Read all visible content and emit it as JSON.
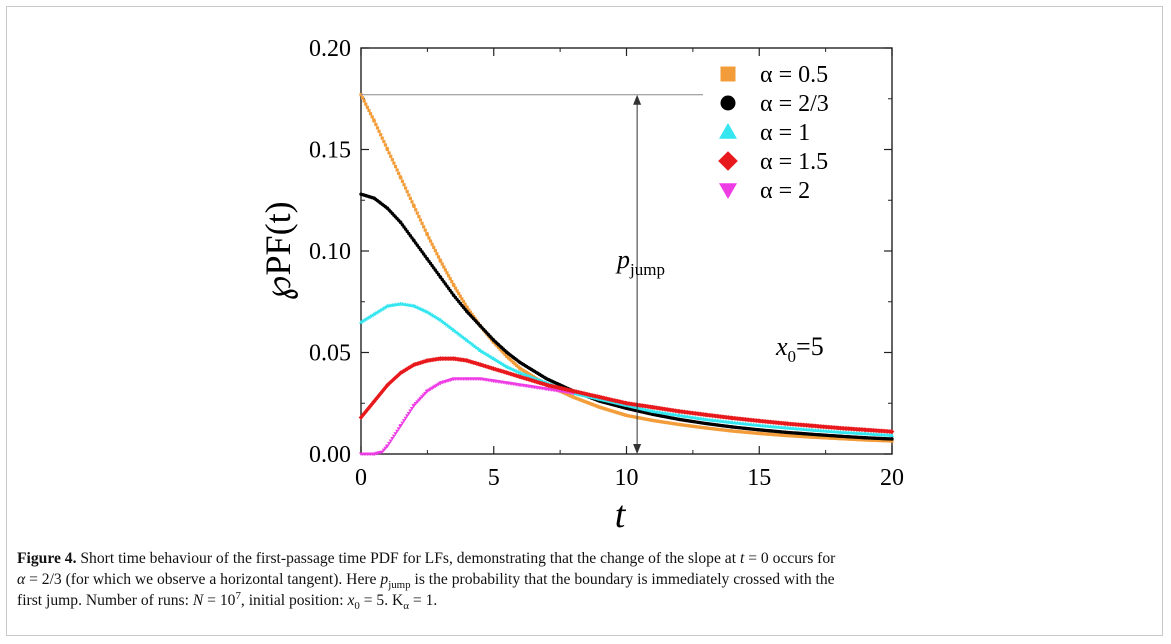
{
  "chart_data": {
    "type": "scatter",
    "title": "",
    "xlabel": "t",
    "ylabel": "℘PF(t)",
    "xlim": [
      0,
      20
    ],
    "ylim": [
      0,
      0.2
    ],
    "x_ticks": [
      "0",
      "5",
      "10",
      "15",
      "20"
    ],
    "y_ticks": [
      "0.00",
      "0.05",
      "0.10",
      "0.15",
      "0.20"
    ],
    "legend_placement": "right",
    "annotations": {
      "p_jump_label": "p",
      "p_jump_sub": "jump",
      "p_jump_from": 0.177,
      "p_jump_to": 0.0,
      "p_jump_x": 10.4,
      "x0_label": "x",
      "x0_sub": "0",
      "x0_value": "=5"
    },
    "series": [
      {
        "name": "α = 0.5",
        "marker": "square",
        "color": "#f39c3a",
        "points": [
          [
            0,
            0.177
          ],
          [
            0.5,
            0.164
          ],
          [
            1,
            0.15
          ],
          [
            1.5,
            0.136
          ],
          [
            2,
            0.122
          ],
          [
            2.5,
            0.108
          ],
          [
            3,
            0.095
          ],
          [
            3.5,
            0.083
          ],
          [
            4,
            0.072
          ],
          [
            4.5,
            0.063
          ],
          [
            5,
            0.055
          ],
          [
            5.5,
            0.048
          ],
          [
            6,
            0.042
          ],
          [
            7,
            0.034
          ],
          [
            8,
            0.028
          ],
          [
            9,
            0.023
          ],
          [
            10,
            0.019
          ],
          [
            11,
            0.0165
          ],
          [
            12,
            0.0145
          ],
          [
            13,
            0.0128
          ],
          [
            14,
            0.0113
          ],
          [
            15,
            0.0101
          ],
          [
            16,
            0.0091
          ],
          [
            17,
            0.0083
          ],
          [
            18,
            0.0076
          ],
          [
            19,
            0.0069
          ],
          [
            20,
            0.0064
          ]
        ]
      },
      {
        "name": "α = 2/3",
        "marker": "circle",
        "color": "#000000",
        "points": [
          [
            0,
            0.128
          ],
          [
            0.5,
            0.126
          ],
          [
            1,
            0.121
          ],
          [
            1.5,
            0.114
          ],
          [
            2,
            0.105
          ],
          [
            2.5,
            0.096
          ],
          [
            3,
            0.087
          ],
          [
            3.5,
            0.078
          ],
          [
            4,
            0.07
          ],
          [
            4.5,
            0.063
          ],
          [
            5,
            0.056
          ],
          [
            5.5,
            0.05
          ],
          [
            6,
            0.045
          ],
          [
            7,
            0.037
          ],
          [
            8,
            0.031
          ],
          [
            9,
            0.026
          ],
          [
            10,
            0.0225
          ],
          [
            11,
            0.0195
          ],
          [
            12,
            0.017
          ],
          [
            13,
            0.015
          ],
          [
            14,
            0.0133
          ],
          [
            15,
            0.0119
          ],
          [
            16,
            0.0107
          ],
          [
            17,
            0.0097
          ],
          [
            18,
            0.0088
          ],
          [
            19,
            0.008
          ],
          [
            20,
            0.0074
          ]
        ]
      },
      {
        "name": "α = 1",
        "marker": "triangle-up",
        "color": "#33e6f0",
        "points": [
          [
            0,
            0.065
          ],
          [
            0.5,
            0.069
          ],
          [
            1,
            0.073
          ],
          [
            1.5,
            0.074
          ],
          [
            2,
            0.073
          ],
          [
            2.5,
            0.07
          ],
          [
            3,
            0.066
          ],
          [
            3.5,
            0.061
          ],
          [
            4,
            0.056
          ],
          [
            4.5,
            0.051
          ],
          [
            5,
            0.047
          ],
          [
            5.5,
            0.043
          ],
          [
            6,
            0.04
          ],
          [
            7,
            0.035
          ],
          [
            8,
            0.03
          ],
          [
            9,
            0.027
          ],
          [
            10,
            0.024
          ],
          [
            11,
            0.021
          ],
          [
            12,
            0.019
          ],
          [
            13,
            0.017
          ],
          [
            14,
            0.0155
          ],
          [
            15,
            0.0141
          ],
          [
            16,
            0.0129
          ],
          [
            17,
            0.0118
          ],
          [
            18,
            0.0108
          ],
          [
            19,
            0.01
          ],
          [
            20,
            0.0092
          ]
        ]
      },
      {
        "name": "α = 1.5",
        "marker": "diamond",
        "color": "#e8191c",
        "points": [
          [
            0,
            0.018
          ],
          [
            0.5,
            0.026
          ],
          [
            1,
            0.034
          ],
          [
            1.5,
            0.04
          ],
          [
            2,
            0.044
          ],
          [
            2.5,
            0.046
          ],
          [
            3,
            0.047
          ],
          [
            3.5,
            0.047
          ],
          [
            4,
            0.046
          ],
          [
            4.5,
            0.044
          ],
          [
            5,
            0.042
          ],
          [
            5.5,
            0.04
          ],
          [
            6,
            0.038
          ],
          [
            7,
            0.034
          ],
          [
            8,
            0.031
          ],
          [
            9,
            0.028
          ],
          [
            10,
            0.025
          ],
          [
            11,
            0.023
          ],
          [
            12,
            0.021
          ],
          [
            13,
            0.0193
          ],
          [
            14,
            0.0177
          ],
          [
            15,
            0.0163
          ],
          [
            16,
            0.015
          ],
          [
            17,
            0.0139
          ],
          [
            18,
            0.0128
          ],
          [
            19,
            0.0119
          ],
          [
            20,
            0.011
          ]
        ]
      },
      {
        "name": "α = 2",
        "marker": "triangle-down",
        "color": "#ef3de6",
        "points": [
          [
            0,
            0.0
          ],
          [
            0.5,
            0.0
          ],
          [
            0.8,
            0.001
          ],
          [
            1,
            0.004
          ],
          [
            1.5,
            0.014
          ],
          [
            2,
            0.024
          ],
          [
            2.5,
            0.031
          ],
          [
            3,
            0.035
          ],
          [
            3.5,
            0.037
          ],
          [
            4,
            0.037
          ],
          [
            4.5,
            0.037
          ],
          [
            5,
            0.036
          ],
          [
            5.5,
            0.035
          ],
          [
            6,
            0.034
          ],
          [
            7,
            0.032
          ],
          [
            8,
            0.03
          ]
        ]
      }
    ]
  },
  "caption": {
    "label": "Figure 4.",
    "t1": " Short time behaviour of the first-passage time PDF for LFs, demonstrating that the change of the slope at ",
    "m1": "t",
    "t2": " = 0 occurs for",
    "m2": "α",
    "t3": " = 2/3 (for which we observe a horizontal tangent). Here ",
    "m3": "p",
    "m3sub": "jump",
    "t4": " is the probability that the boundary is immediately crossed with the",
    "t5": "first jump. Number of runs: ",
    "m4": "N",
    "t6": " = 10",
    "m4sup": "7",
    "t7": ", initial position: ",
    "m5": "x",
    "m5sub": "0",
    "t8": " = 5. K",
    "m6sub": "α",
    "t9": " = 1."
  }
}
